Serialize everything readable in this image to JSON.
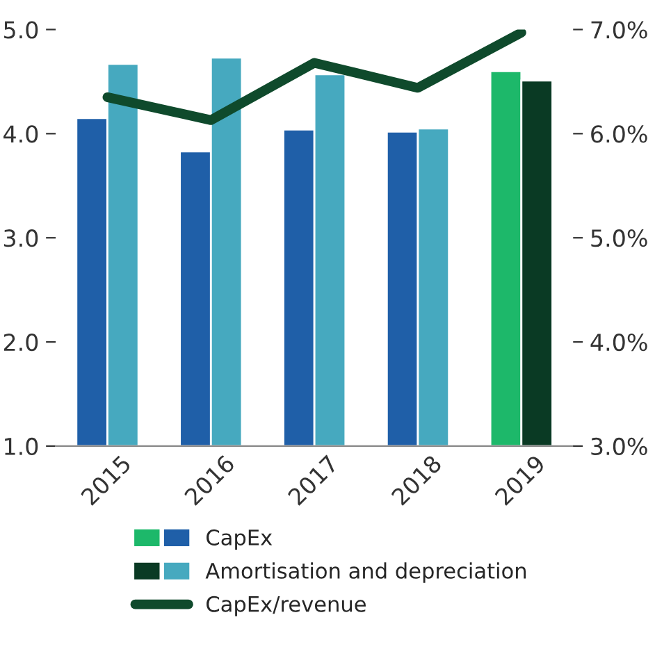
{
  "chart_data": {
    "type": "bar",
    "categories": [
      "2015",
      "2016",
      "2017",
      "2018",
      "2019"
    ],
    "series": [
      {
        "name": "CapEx",
        "color": "#1f5fa8",
        "colors": [
          "#1f5fa8",
          "#1f5fa8",
          "#1f5fa8",
          "#1f5fa8",
          "#1db86a"
        ],
        "values": [
          4.15,
          3.83,
          4.04,
          4.02,
          4.6
        ]
      },
      {
        "name": "Amortisation and depreciation",
        "color": "#46a9bf",
        "colors": [
          "#46a9bf",
          "#46a9bf",
          "#46a9bf",
          "#46a9bf",
          "#0a3a24"
        ],
        "values": [
          4.67,
          4.73,
          4.57,
          4.05,
          4.51
        ]
      },
      {
        "name": "CapEx/revenue",
        "type": "line",
        "axis": "y2",
        "color": "#0f4a2c",
        "values": [
          6.35,
          6.13,
          6.68,
          6.44,
          6.97
        ]
      }
    ],
    "ylim": [
      1,
      5
    ],
    "yticks": [
      {
        "value": 1,
        "label": "1.0"
      },
      {
        "value": 2,
        "label": "2.0"
      },
      {
        "value": 3,
        "label": "3.0"
      },
      {
        "value": 4,
        "label": "4.0"
      },
      {
        "value": 5,
        "label": "5.0"
      }
    ],
    "y2lim": [
      3,
      7
    ],
    "y2ticks": [
      {
        "value": 3,
        "label": "3.0%"
      },
      {
        "value": 4,
        "label": "4.0%"
      },
      {
        "value": 5,
        "label": "5.0%"
      },
      {
        "value": 6,
        "label": "6.0%"
      },
      {
        "value": 7,
        "label": "7.0%"
      }
    ],
    "legend": "bottom",
    "grid": false,
    "marker": "none",
    "line_style": "solid"
  }
}
